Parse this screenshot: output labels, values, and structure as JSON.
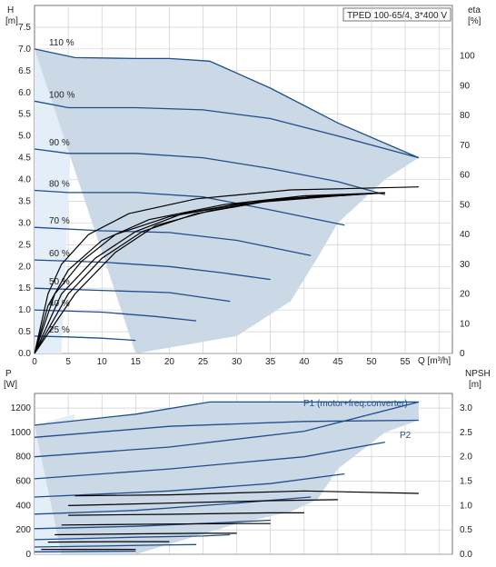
{
  "colors": {
    "area": "#cbd8e6",
    "area_light": "#e3eef9",
    "curve": "#1f4e8c",
    "grid": "#c8c8c8",
    "eta": "#000000"
  },
  "title": "TPED 100-65/4, 3*400 V",
  "top": {
    "ylabel": "H",
    "yunit": "[m]",
    "y2label": "eta",
    "y2unit": "[%]",
    "xlabel": "Q [m³/h]",
    "x_ticks": [
      "0",
      "5",
      "10",
      "15",
      "20",
      "25",
      "30",
      "35",
      "40",
      "45",
      "50",
      "55"
    ],
    "y_ticks": [
      "0.0",
      "0.5",
      "1.0",
      "1.5",
      "2.0",
      "2.5",
      "3.0",
      "3.5",
      "4.0",
      "4.5",
      "5.0",
      "5.5",
      "6.0",
      "6.5",
      "7.0",
      "7.5"
    ],
    "y2_ticks": [
      "0",
      "10",
      "20",
      "30",
      "40",
      "50",
      "60",
      "70",
      "80",
      "90",
      "100"
    ]
  },
  "bottom": {
    "ylabel": "P",
    "yunit": "[W]",
    "y2label": "NPSH",
    "y2unit": "[m]",
    "y_ticks": [
      "0",
      "200",
      "400",
      "600",
      "800",
      "1000",
      "1200"
    ],
    "y2_ticks": [
      "0.0",
      "0.5",
      "1.0",
      "1.5",
      "2.0",
      "2.5",
      "3.0"
    ],
    "label_p1": "P1 (motor+freq.converter)",
    "label_p2": "P2"
  },
  "chart_data": [
    {
      "type": "line",
      "title": "TPED 100-65/4, 3*400 V",
      "xlabel": "Q [m³/h]",
      "ylabel": "H [m]",
      "y2label": "eta [%]",
      "xlim": [
        0,
        62
      ],
      "ylim": [
        0,
        8.0
      ],
      "y2lim": [
        0,
        117
      ],
      "grid": true,
      "operating_area": {
        "upper": [
          [
            0,
            7.0
          ],
          [
            6,
            6.8
          ],
          [
            15,
            6.78
          ],
          [
            20,
            6.78
          ],
          [
            26,
            6.72
          ],
          [
            35,
            6.1
          ],
          [
            45,
            5.3
          ],
          [
            57,
            4.5
          ]
        ],
        "lower": [
          [
            57,
            4.5
          ],
          [
            52,
            4.0
          ],
          [
            45,
            3.0
          ],
          [
            42,
            2.2
          ],
          [
            38,
            1.2
          ],
          [
            30,
            0.4
          ],
          [
            15,
            0.0
          ]
        ]
      },
      "series": [
        {
          "name": "110 %",
          "type": "head",
          "points": [
            [
              0,
              7.0
            ],
            [
              6,
              6.8
            ],
            [
              15,
              6.78
            ],
            [
              20,
              6.78
            ],
            [
              26,
              6.72
            ],
            [
              35,
              6.1
            ],
            [
              45,
              5.3
            ],
            [
              57,
              4.5
            ]
          ]
        },
        {
          "name": "100 %",
          "type": "head",
          "points": [
            [
              0,
              5.8
            ],
            [
              5,
              5.65
            ],
            [
              15,
              5.65
            ],
            [
              25,
              5.6
            ],
            [
              35,
              5.4
            ],
            [
              45,
              5.0
            ],
            [
              57,
              4.5
            ]
          ]
        },
        {
          "name": "90 %",
          "type": "head",
          "points": [
            [
              0,
              4.7
            ],
            [
              5,
              4.6
            ],
            [
              15,
              4.6
            ],
            [
              25,
              4.5
            ],
            [
              35,
              4.25
            ],
            [
              45,
              3.95
            ],
            [
              52,
              3.65
            ]
          ]
        },
        {
          "name": "80 %",
          "type": "head",
          "points": [
            [
              0,
              3.75
            ],
            [
              5,
              3.7
            ],
            [
              15,
              3.7
            ],
            [
              25,
              3.6
            ],
            [
              35,
              3.3
            ],
            [
              46,
              2.95
            ]
          ]
        },
        {
          "name": "70 %",
          "type": "head",
          "points": [
            [
              0,
              2.9
            ],
            [
              10,
              2.82
            ],
            [
              20,
              2.78
            ],
            [
              30,
              2.6
            ],
            [
              41,
              2.25
            ]
          ]
        },
        {
          "name": "60 %",
          "type": "head",
          "points": [
            [
              0,
              2.15
            ],
            [
              10,
              2.1
            ],
            [
              20,
              2.0
            ],
            [
              28,
              1.85
            ],
            [
              35,
              1.7
            ]
          ]
        },
        {
          "name": "50 %",
          "type": "head",
          "points": [
            [
              0,
              1.5
            ],
            [
              10,
              1.45
            ],
            [
              20,
              1.4
            ],
            [
              29,
              1.2
            ]
          ]
        },
        {
          "name": "40 %",
          "type": "head",
          "points": [
            [
              0,
              1.0
            ],
            [
              10,
              0.95
            ],
            [
              18,
              0.85
            ],
            [
              24,
              0.75
            ]
          ]
        },
        {
          "name": "25 %",
          "type": "head",
          "points": [
            [
              0,
              0.4
            ],
            [
              5,
              0.38
            ],
            [
              10,
              0.35
            ],
            [
              15,
              0.3
            ]
          ]
        },
        {
          "name": "",
          "type": "eta",
          "points": [
            [
              0,
              0
            ],
            [
              6,
              20
            ],
            [
              12,
              34
            ],
            [
              18,
              43
            ],
            [
              26,
              48
            ],
            [
              36,
              52
            ],
            [
              45,
              53
            ],
            [
              52,
              54
            ]
          ]
        },
        {
          "name": "",
          "type": "eta",
          "points": [
            [
              0,
              0
            ],
            [
              5,
              20
            ],
            [
              10,
              32
            ],
            [
              16,
              41
            ],
            [
              24,
              47
            ],
            [
              34,
              51
            ],
            [
              45,
              53
            ],
            [
              52,
              54
            ]
          ]
        },
        {
          "name": "",
          "type": "eta",
          "points": [
            [
              0,
              0
            ],
            [
              4,
              20
            ],
            [
              9,
              32
            ],
            [
              15,
              41
            ],
            [
              22,
              47
            ],
            [
              32,
              51
            ],
            [
              44,
              53
            ],
            [
              52,
              54
            ]
          ]
        },
        {
          "name": "",
          "type": "eta",
          "points": [
            [
              0,
              0
            ],
            [
              3,
              20
            ],
            [
              7,
              31
            ],
            [
              12,
              40
            ],
            [
              20,
              46
            ],
            [
              30,
              50
            ],
            [
              42,
              53
            ],
            [
              52,
              54
            ]
          ]
        },
        {
          "name": "",
          "type": "eta",
          "points": [
            [
              0,
              0
            ],
            [
              2,
              16
            ],
            [
              5,
              28
            ],
            [
              10,
              38
            ],
            [
              17,
              45
            ],
            [
              28,
              50
            ],
            [
              40,
              53
            ],
            [
              52,
              54
            ]
          ]
        },
        {
          "name": "",
          "type": "eta",
          "points": [
            [
              0,
              0
            ],
            [
              2,
              20
            ],
            [
              4,
              30
            ],
            [
              8,
              40
            ],
            [
              14,
              47
            ],
            [
              24,
              52
            ],
            [
              38,
              55
            ],
            [
              57,
              56
            ]
          ]
        }
      ]
    },
    {
      "type": "line",
      "xlabel": "Q [m³/h]",
      "ylabel": "P [W]",
      "y2label": "NPSH [m]",
      "xlim": [
        0,
        62
      ],
      "ylim": [
        0,
        1320
      ],
      "y2lim": [
        0,
        3.3
      ],
      "grid": true,
      "operating_area": {
        "upper": [
          [
            0,
            1060
          ],
          [
            15,
            1150
          ],
          [
            26,
            1250
          ],
          [
            57,
            1250
          ]
        ],
        "lower": [
          [
            57,
            1250
          ],
          [
            57,
            1100
          ],
          [
            52,
            1000
          ],
          [
            45,
            700
          ],
          [
            42,
            450
          ],
          [
            38,
            350
          ],
          [
            30,
            250
          ],
          [
            15,
            0
          ],
          [
            4,
            0
          ]
        ]
      },
      "series": [
        {
          "name": "P1 (motor+freq.converter)",
          "type": "power",
          "points": [
            [
              0,
              1060
            ],
            [
              15,
              1150
            ],
            [
              26,
              1250
            ],
            [
              57,
              1250
            ]
          ]
        },
        {
          "name": "P2",
          "type": "power",
          "points": [
            [
              0,
              960
            ],
            [
              20,
              1050
            ],
            [
              40,
              1090
            ],
            [
              57,
              1100
            ]
          ]
        },
        {
          "name": "",
          "type": "power",
          "points": [
            [
              0,
              800
            ],
            [
              20,
              880
            ],
            [
              40,
              1010
            ],
            [
              57,
              1250
            ]
          ]
        },
        {
          "name": "",
          "type": "power",
          "points": [
            [
              0,
              620
            ],
            [
              20,
              700
            ],
            [
              40,
              800
            ],
            [
              52,
              920
            ]
          ]
        },
        {
          "name": "",
          "type": "power",
          "points": [
            [
              0,
              470
            ],
            [
              20,
              520
            ],
            [
              35,
              580
            ],
            [
              46,
              660
            ]
          ]
        },
        {
          "name": "",
          "type": "power",
          "points": [
            [
              0,
              330
            ],
            [
              15,
              360
            ],
            [
              30,
              420
            ],
            [
              41,
              470
            ]
          ]
        },
        {
          "name": "",
          "type": "power",
          "points": [
            [
              0,
              210
            ],
            [
              15,
              230
            ],
            [
              28,
              260
            ],
            [
              35,
              280
            ]
          ]
        },
        {
          "name": "",
          "type": "power",
          "points": [
            [
              0,
              120
            ],
            [
              15,
              140
            ],
            [
              25,
              150
            ],
            [
              29,
              160
            ]
          ]
        },
        {
          "name": "",
          "type": "power",
          "points": [
            [
              0,
              60
            ],
            [
              10,
              68
            ],
            [
              18,
              75
            ],
            [
              24,
              80
            ]
          ]
        },
        {
          "name": "",
          "type": "power",
          "points": [
            [
              0,
              20
            ],
            [
              8,
              24
            ],
            [
              15,
              26
            ]
          ]
        },
        {
          "name": "",
          "type": "npsh",
          "points": [
            [
              6,
              1.2
            ],
            [
              20,
              1.22
            ],
            [
              40,
              1.3
            ],
            [
              57,
              1.25
            ]
          ]
        },
        {
          "name": "",
          "type": "npsh",
          "points": [
            [
              5,
              1.0
            ],
            [
              20,
              1.05
            ],
            [
              35,
              1.1
            ],
            [
              45,
              1.12
            ]
          ]
        },
        {
          "name": "",
          "type": "npsh",
          "points": [
            [
              5,
              0.8
            ],
            [
              20,
              0.82
            ],
            [
              35,
              0.85
            ],
            [
              40,
              0.85
            ]
          ]
        },
        {
          "name": "",
          "type": "npsh",
          "points": [
            [
              4,
              0.6
            ],
            [
              20,
              0.62
            ],
            [
              30,
              0.63
            ],
            [
              35,
              0.63
            ]
          ]
        },
        {
          "name": "",
          "type": "npsh",
          "points": [
            [
              3,
              0.4
            ],
            [
              15,
              0.42
            ],
            [
              25,
              0.43
            ],
            [
              30,
              0.43
            ]
          ]
        },
        {
          "name": "",
          "type": "npsh",
          "points": [
            [
              2,
              0.25
            ],
            [
              12,
              0.26
            ],
            [
              20,
              0.26
            ]
          ]
        },
        {
          "name": "",
          "type": "npsh",
          "points": [
            [
              1,
              0.1
            ],
            [
              8,
              0.1
            ],
            [
              15,
              0.1
            ]
          ]
        }
      ]
    }
  ]
}
